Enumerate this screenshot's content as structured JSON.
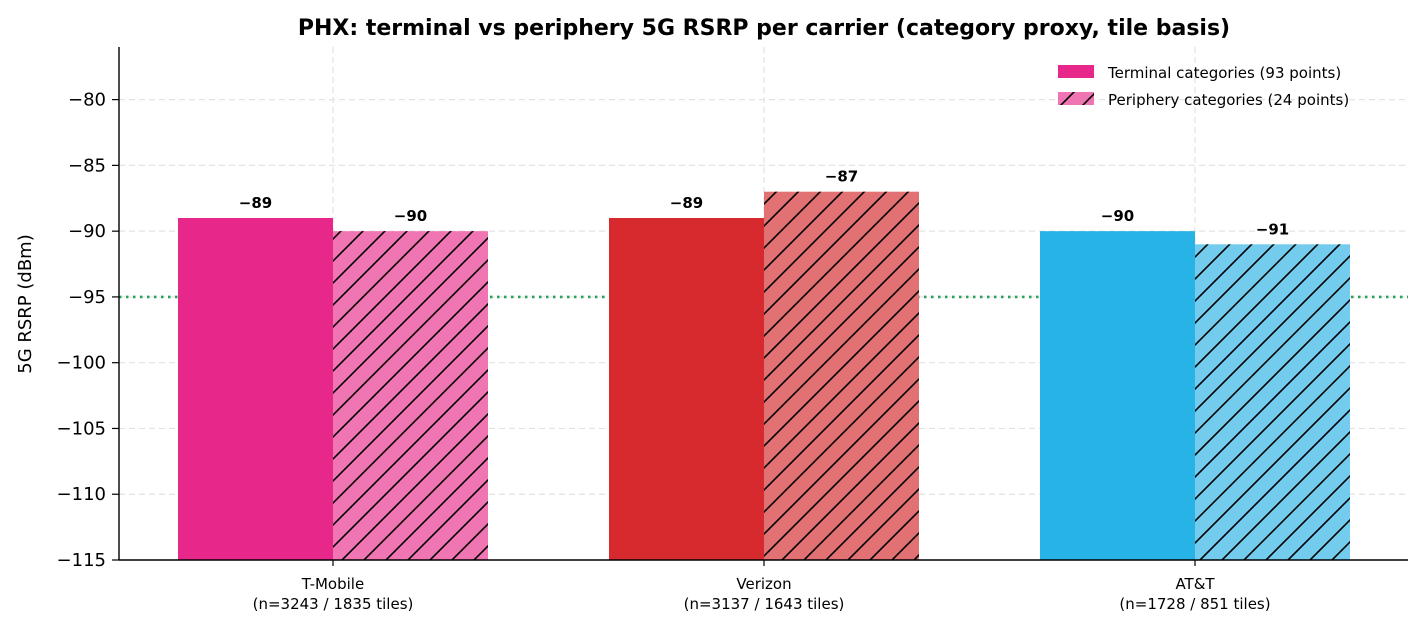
{
  "chart_data": {
    "type": "bar",
    "title": "PHX: terminal vs periphery 5G RSRP per carrier (category proxy, tile basis)",
    "xlabel": "",
    "ylabel": "5G RSRP (dBm)",
    "ylim": [
      -115,
      -76
    ],
    "yticks": [
      -80,
      -85,
      -90,
      -95,
      -100,
      -105,
      -110,
      -115
    ],
    "ytick_labels": [
      "−80",
      "−85",
      "−90",
      "−95",
      "−100",
      "−105",
      "−110",
      "−115"
    ],
    "grid": true,
    "legend_position": "top-right",
    "categories": [
      {
        "name": "T-Mobile",
        "detail": "(n=3243 / 1835 tiles)"
      },
      {
        "name": "Verizon",
        "detail": "(n=3137 / 1643 tiles)"
      },
      {
        "name": "AT&T",
        "detail": "(n=1728 / 851 tiles)"
      }
    ],
    "series": [
      {
        "name": "Terminal categories (93 points)",
        "values": [
          -89,
          -89,
          -90
        ],
        "labels": [
          "−89",
          "−89",
          "−90"
        ],
        "hatch": false
      },
      {
        "name": "Periphery categories (24 points)",
        "values": [
          -90,
          -87,
          -91
        ],
        "labels": [
          "−90",
          "−87",
          "−91"
        ],
        "hatch": true
      }
    ],
    "colors": {
      "terminal": [
        "#e8278a",
        "#d62a2f",
        "#27b3e6"
      ],
      "periphery": [
        "#f075b3",
        "#e27174",
        "#73cbee"
      ],
      "legend_terminal": "#e8278a",
      "legend_periphery": "#f075b3"
    },
    "reference_line": {
      "value": -95,
      "style": "dotted",
      "color": "#2ca05a"
    }
  }
}
